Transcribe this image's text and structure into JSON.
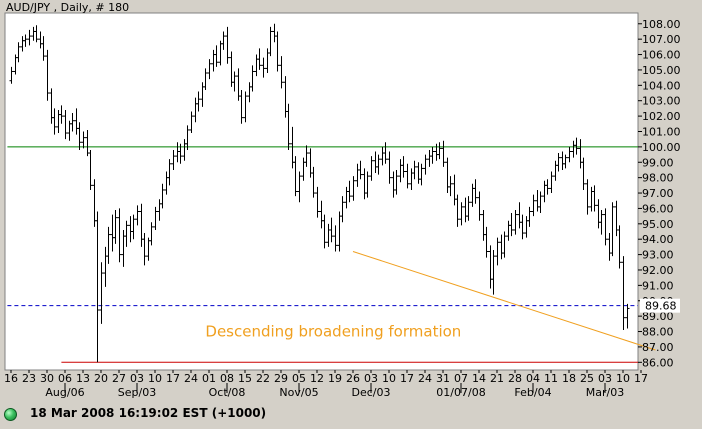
{
  "status": {
    "timestamp": "18 Mar 2008 16:19:02",
    "timezone": "EST",
    "offset": "(+1000)",
    "indicator_color": "#33bb55"
  },
  "chart_data": {
    "type": "ohlc",
    "title": "AUD/JPY , Daily, # 180",
    "ylim": [
      85.5,
      108.7
    ],
    "y_ticks": [
      86,
      87,
      88,
      89,
      90,
      91,
      92,
      93,
      94,
      95,
      96,
      97,
      98,
      99,
      100,
      101,
      102,
      103,
      104,
      105,
      106,
      107,
      108
    ],
    "y_tick_labels": [
      "86.00",
      "87.00",
      "88.00",
      "89.00",
      "90.00",
      "91.00",
      "92.00",
      "93.00",
      "94.00",
      "95.00",
      "96.00",
      "97.00",
      "98.00",
      "99.00",
      "100.00",
      "101.00",
      "102.00",
      "103.00",
      "104.00",
      "105.00",
      "106.00",
      "107.00",
      "108.00"
    ],
    "x_ticks": [
      {
        "label": "16",
        "day": 0
      },
      {
        "label": "23",
        "day": 5
      },
      {
        "label": "30",
        "day": 10
      },
      {
        "label": "06",
        "day": 15
      },
      {
        "label": "13",
        "day": 20
      },
      {
        "label": "20",
        "day": 25
      },
      {
        "label": "27",
        "day": 30
      },
      {
        "label": "03",
        "day": 35
      },
      {
        "label": "10",
        "day": 40
      },
      {
        "label": "17",
        "day": 45
      },
      {
        "label": "24",
        "day": 50
      },
      {
        "label": "01",
        "day": 55
      },
      {
        "label": "08",
        "day": 60
      },
      {
        "label": "15",
        "day": 65
      },
      {
        "label": "22",
        "day": 70
      },
      {
        "label": "29",
        "day": 75
      },
      {
        "label": "05",
        "day": 80
      },
      {
        "label": "12",
        "day": 85
      },
      {
        "label": "19",
        "day": 90
      },
      {
        "label": "26",
        "day": 95
      },
      {
        "label": "03",
        "day": 100
      },
      {
        "label": "10",
        "day": 105
      },
      {
        "label": "17",
        "day": 110
      },
      {
        "label": "24",
        "day": 115
      },
      {
        "label": "31",
        "day": 120
      },
      {
        "label": "07",
        "day": 125
      },
      {
        "label": "14",
        "day": 130
      },
      {
        "label": "21",
        "day": 135
      },
      {
        "label": "28",
        "day": 140
      },
      {
        "label": "04",
        "day": 145
      },
      {
        "label": "11",
        "day": 150
      },
      {
        "label": "18",
        "day": 155
      },
      {
        "label": "25",
        "day": 160
      },
      {
        "label": "03",
        "day": 165
      },
      {
        "label": "10",
        "day": 170
      },
      {
        "label": "17",
        "day": 175
      }
    ],
    "x_period_labels": [
      {
        "label": "Aug/06",
        "day": 15
      },
      {
        "label": "Sep/03",
        "day": 35
      },
      {
        "label": "Oct/08",
        "day": 60
      },
      {
        "label": "Nov/05",
        "day": 80
      },
      {
        "label": "Dec/03",
        "day": 100
      },
      {
        "label": "01/07/08",
        "day": 125
      },
      {
        "label": "Feb/04",
        "day": 145
      },
      {
        "label": "Mar/03",
        "day": 165
      }
    ],
    "horizontal_lines": [
      {
        "value": 100.0,
        "color": "#008000",
        "style": "solid",
        "span": [
          -1,
          180
        ]
      },
      {
        "value": 89.68,
        "color": "#0000c8",
        "style": "dashed",
        "span": [
          -1,
          180
        ],
        "label": "89.68"
      },
      {
        "value": 86.0,
        "color": "#cc0000",
        "style": "solid",
        "span": [
          14,
          179
        ]
      }
    ],
    "trendlines": [
      {
        "from": [
          95,
          93.2
        ],
        "to": [
          179,
          86.8
        ],
        "color": "#f0a020"
      }
    ],
    "annotation": {
      "text": "Descending broadening formation",
      "day": 54,
      "value": 88.0
    },
    "colors": {
      "plot_bg": "#ffffff",
      "frame_bg": "#d4d0c8",
      "bars": "#000000"
    },
    "ohlc": [
      [
        104.3,
        105.2,
        104.1,
        104.9
      ],
      [
        104.9,
        106.0,
        104.7,
        105.8
      ],
      [
        105.8,
        106.8,
        105.5,
        106.5
      ],
      [
        106.5,
        107.2,
        106.2,
        106.9
      ],
      [
        106.9,
        107.3,
        106.5,
        107.0
      ],
      [
        107.0,
        107.6,
        106.6,
        107.2
      ],
      [
        107.2,
        107.8,
        106.9,
        107.5
      ],
      [
        107.5,
        107.9,
        106.8,
        107.0
      ],
      [
        107.0,
        107.5,
        106.4,
        106.7
      ],
      [
        106.7,
        107.2,
        105.6,
        105.9
      ],
      [
        105.9,
        106.3,
        103.0,
        103.5
      ],
      [
        103.5,
        103.8,
        101.5,
        101.9
      ],
      [
        101.9,
        102.5,
        100.8,
        101.3
      ],
      [
        101.3,
        102.4,
        100.9,
        102.1
      ],
      [
        102.1,
        102.7,
        101.5,
        102.0
      ],
      [
        102.0,
        102.4,
        100.5,
        100.9
      ],
      [
        100.9,
        101.7,
        100.4,
        101.5
      ],
      [
        101.5,
        102.2,
        101.0,
        101.7
      ],
      [
        101.7,
        102.5,
        100.8,
        101.2
      ],
      [
        101.2,
        101.6,
        99.8,
        100.3
      ],
      [
        100.3,
        101.0,
        99.9,
        100.6
      ],
      [
        100.6,
        101.1,
        99.4,
        99.6
      ],
      [
        99.6,
        99.8,
        97.2,
        97.5
      ],
      [
        97.5,
        97.9,
        94.8,
        95.2
      ],
      [
        95.2,
        95.8,
        86.0,
        89.4
      ],
      [
        89.4,
        92.5,
        88.5,
        91.8
      ],
      [
        91.8,
        93.5,
        90.9,
        92.9
      ],
      [
        92.9,
        94.8,
        92.4,
        94.3
      ],
      [
        94.3,
        95.6,
        93.2,
        94.1
      ],
      [
        94.1,
        95.9,
        93.7,
        95.4
      ],
      [
        95.4,
        96.0,
        92.5,
        93.0
      ],
      [
        93.0,
        94.6,
        92.2,
        94.2
      ],
      [
        94.2,
        95.2,
        93.5,
        94.9
      ],
      [
        94.9,
        95.5,
        93.8,
        94.5
      ],
      [
        94.5,
        95.6,
        94.0,
        95.3
      ],
      [
        95.3,
        96.2,
        94.9,
        95.8
      ],
      [
        95.8,
        96.3,
        93.5,
        94.0
      ],
      [
        94.0,
        94.4,
        92.3,
        92.9
      ],
      [
        92.9,
        94.1,
        92.6,
        93.9
      ],
      [
        93.9,
        95.1,
        93.6,
        94.8
      ],
      [
        94.8,
        96.1,
        94.6,
        95.8
      ],
      [
        95.8,
        96.6,
        95.2,
        96.3
      ],
      [
        96.3,
        97.6,
        96.0,
        97.2
      ],
      [
        97.2,
        98.4,
        96.9,
        98.0
      ],
      [
        98.0,
        99.2,
        97.5,
        98.9
      ],
      [
        98.9,
        99.8,
        98.5,
        99.4
      ],
      [
        99.4,
        100.3,
        99.0,
        99.7
      ],
      [
        99.7,
        100.2,
        98.9,
        99.4
      ],
      [
        99.4,
        100.5,
        99.1,
        100.2
      ],
      [
        100.2,
        101.4,
        99.8,
        101.1
      ],
      [
        101.1,
        102.3,
        100.9,
        102.0
      ],
      [
        102.0,
        103.2,
        101.6,
        102.8
      ],
      [
        102.8,
        103.6,
        102.3,
        103.1
      ],
      [
        103.1,
        104.2,
        102.6,
        103.9
      ],
      [
        103.9,
        105.1,
        103.7,
        104.8
      ],
      [
        104.8,
        105.7,
        104.4,
        105.4
      ],
      [
        105.4,
        106.3,
        104.9,
        106.0
      ],
      [
        106.0,
        106.6,
        105.2,
        105.5
      ],
      [
        105.5,
        106.9,
        105.3,
        106.7
      ],
      [
        106.7,
        107.5,
        106.3,
        107.2
      ],
      [
        107.2,
        107.8,
        105.4,
        105.8
      ],
      [
        105.8,
        106.2,
        103.9,
        104.2
      ],
      [
        104.2,
        104.9,
        103.6,
        104.6
      ],
      [
        104.6,
        105.1,
        103.0,
        103.3
      ],
      [
        103.3,
        103.7,
        101.5,
        101.9
      ],
      [
        101.9,
        103.6,
        101.6,
        103.3
      ],
      [
        103.3,
        104.2,
        102.9,
        103.9
      ],
      [
        103.9,
        105.3,
        103.6,
        104.9
      ],
      [
        104.9,
        106.0,
        104.6,
        105.7
      ],
      [
        105.7,
        106.4,
        105.0,
        105.3
      ],
      [
        105.3,
        105.8,
        104.5,
        105.1
      ],
      [
        105.1,
        106.4,
        104.8,
        106.1
      ],
      [
        106.1,
        107.8,
        105.9,
        107.5
      ],
      [
        107.5,
        108.0,
        106.8,
        107.2
      ],
      [
        107.2,
        107.5,
        104.9,
        105.3
      ],
      [
        105.3,
        105.9,
        103.8,
        104.2
      ],
      [
        104.2,
        104.6,
        101.9,
        102.3
      ],
      [
        102.3,
        102.8,
        99.8,
        100.2
      ],
      [
        100.2,
        101.3,
        98.6,
        99.0
      ],
      [
        99.0,
        99.4,
        96.8,
        97.1
      ],
      [
        97.1,
        98.4,
        96.4,
        98.1
      ],
      [
        98.1,
        99.3,
        97.8,
        99.0
      ],
      [
        99.0,
        100.1,
        98.7,
        99.6
      ],
      [
        99.6,
        99.9,
        98.0,
        98.3
      ],
      [
        98.3,
        98.7,
        96.7,
        97.0
      ],
      [
        97.0,
        97.4,
        95.4,
        95.8
      ],
      [
        95.8,
        96.5,
        94.7,
        95.2
      ],
      [
        95.2,
        95.6,
        93.4,
        93.8
      ],
      [
        93.8,
        95.0,
        93.5,
        94.6
      ],
      [
        94.6,
        95.4,
        93.8,
        94.2
      ],
      [
        94.2,
        94.9,
        93.2,
        93.6
      ],
      [
        93.6,
        95.8,
        93.2,
        95.5
      ],
      [
        95.5,
        96.8,
        95.1,
        96.4
      ],
      [
        96.4,
        97.4,
        96.0,
        97.1
      ],
      [
        97.1,
        97.8,
        96.4,
        96.8
      ],
      [
        96.8,
        98.1,
        96.5,
        97.8
      ],
      [
        97.8,
        98.9,
        97.4,
        98.5
      ],
      [
        98.5,
        99.1,
        97.9,
        98.2
      ],
      [
        98.2,
        98.6,
        96.6,
        97.0
      ],
      [
        97.0,
        98.4,
        96.7,
        98.1
      ],
      [
        98.1,
        99.4,
        97.8,
        99.1
      ],
      [
        99.1,
        99.7,
        98.3,
        98.7
      ],
      [
        98.7,
        99.5,
        98.2,
        99.2
      ],
      [
        99.2,
        100.0,
        98.8,
        99.6
      ],
      [
        99.6,
        100.3,
        98.9,
        99.2
      ],
      [
        99.2,
        99.7,
        97.6,
        98.0
      ],
      [
        98.0,
        98.4,
        96.7,
        97.2
      ],
      [
        97.2,
        98.5,
        96.9,
        98.1
      ],
      [
        98.1,
        99.2,
        97.7,
        98.8
      ],
      [
        98.8,
        99.4,
        98.0,
        98.4
      ],
      [
        98.4,
        98.9,
        97.3,
        97.6
      ],
      [
        97.6,
        98.6,
        97.2,
        98.3
      ],
      [
        98.3,
        99.1,
        97.9,
        98.7
      ],
      [
        98.7,
        99.0,
        97.6,
        97.9
      ],
      [
        97.9,
        98.9,
        97.5,
        98.6
      ],
      [
        98.6,
        99.5,
        98.2,
        99.2
      ],
      [
        99.2,
        99.8,
        98.7,
        99.4
      ],
      [
        99.4,
        100.0,
        98.9,
        99.7
      ],
      [
        99.7,
        100.2,
        99.1,
        99.5
      ],
      [
        99.5,
        100.3,
        99.2,
        99.9
      ],
      [
        99.9,
        100.4,
        98.7,
        99.0
      ],
      [
        99.0,
        99.3,
        97.0,
        97.4
      ],
      [
        97.4,
        98.1,
        96.8,
        97.6
      ],
      [
        97.6,
        98.2,
        96.2,
        96.6
      ],
      [
        96.6,
        96.9,
        94.8,
        95.3
      ],
      [
        95.3,
        96.4,
        94.9,
        96.1
      ],
      [
        96.1,
        96.7,
        95.1,
        95.5
      ],
      [
        95.5,
        96.8,
        95.2,
        96.4
      ],
      [
        96.4,
        97.6,
        96.1,
        97.3
      ],
      [
        97.3,
        97.9,
        96.3,
        96.7
      ],
      [
        96.7,
        97.1,
        95.2,
        95.6
      ],
      [
        95.6,
        95.9,
        93.9,
        94.3
      ],
      [
        94.3,
        94.8,
        92.8,
        93.2
      ],
      [
        93.2,
        93.6,
        90.8,
        91.4
      ],
      [
        91.4,
        93.3,
        90.4,
        92.9
      ],
      [
        92.9,
        94.1,
        92.3,
        93.8
      ],
      [
        93.8,
        94.3,
        92.7,
        93.1
      ],
      [
        93.1,
        94.5,
        92.8,
        94.2
      ],
      [
        94.2,
        95.2,
        93.9,
        94.9
      ],
      [
        94.9,
        95.7,
        94.2,
        94.6
      ],
      [
        94.6,
        95.9,
        94.3,
        95.6
      ],
      [
        95.6,
        96.4,
        94.7,
        95.1
      ],
      [
        95.1,
        95.6,
        94.0,
        94.4
      ],
      [
        94.4,
        95.5,
        94.1,
        95.2
      ],
      [
        95.2,
        96.1,
        94.8,
        95.8
      ],
      [
        95.8,
        96.9,
        95.5,
        96.5
      ],
      [
        96.5,
        97.2,
        95.8,
        96.1
      ],
      [
        96.1,
        97.1,
        95.7,
        96.8
      ],
      [
        96.8,
        97.8,
        96.4,
        97.5
      ],
      [
        97.5,
        97.9,
        96.9,
        97.3
      ],
      [
        97.3,
        98.4,
        97.0,
        98.1
      ],
      [
        98.1,
        99.1,
        97.8,
        98.8
      ],
      [
        98.8,
        99.6,
        98.4,
        99.3
      ],
      [
        99.3,
        99.7,
        98.5,
        98.9
      ],
      [
        98.9,
        99.5,
        98.6,
        99.3
      ],
      [
        99.3,
        100.0,
        99.0,
        99.7
      ],
      [
        99.7,
        100.4,
        99.3,
        100.1
      ],
      [
        100.1,
        100.6,
        99.5,
        99.9
      ],
      [
        99.9,
        100.5,
        98.6,
        99.0
      ],
      [
        99.0,
        99.3,
        97.2,
        97.6
      ],
      [
        97.6,
        97.9,
        95.6,
        96.1
      ],
      [
        96.1,
        97.4,
        95.8,
        97.1
      ],
      [
        97.1,
        97.5,
        95.8,
        96.2
      ],
      [
        96.2,
        96.6,
        94.7,
        95.1
      ],
      [
        95.1,
        95.9,
        94.3,
        95.6
      ],
      [
        95.6,
        96.0,
        93.6,
        94.0
      ],
      [
        94.0,
        94.4,
        92.6,
        93.1
      ],
      [
        93.1,
        96.4,
        92.9,
        96.1
      ],
      [
        96.1,
        96.5,
        94.2,
        94.6
      ],
      [
        94.6,
        94.9,
        92.1,
        92.5
      ],
      [
        92.5,
        92.9,
        88.1,
        88.9
      ],
      [
        88.9,
        89.8,
        88.2,
        89.5
      ]
    ]
  }
}
